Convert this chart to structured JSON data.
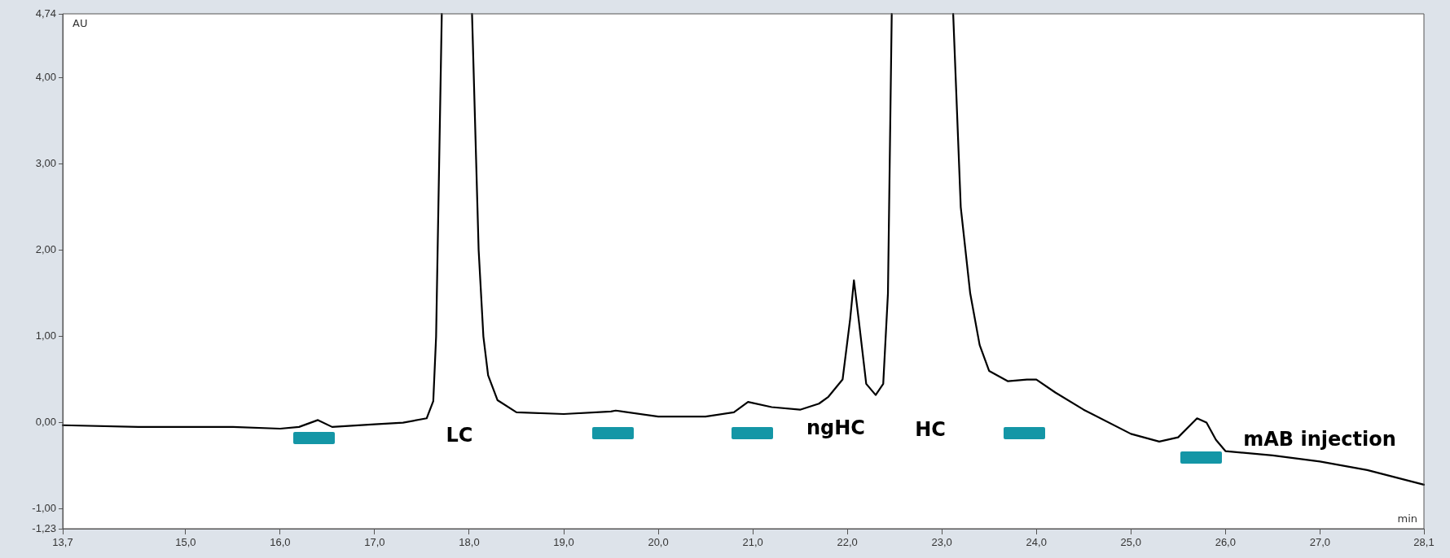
{
  "chart_data": {
    "type": "line",
    "xlabel": "min",
    "ylabel": "AU",
    "xlim": [
      13.7,
      28.1
    ],
    "ylim": [
      -1.23,
      4.74
    ],
    "xticks": [
      {
        "value": 13.7,
        "label": "13,7"
      },
      {
        "value": 15,
        "label": "15,0"
      },
      {
        "value": 16,
        "label": "16,0"
      },
      {
        "value": 17,
        "label": "17,0"
      },
      {
        "value": 18,
        "label": "18,0"
      },
      {
        "value": 19,
        "label": "19,0"
      },
      {
        "value": 20,
        "label": "20,0"
      },
      {
        "value": 21,
        "label": "21,0"
      },
      {
        "value": 22,
        "label": "22,0"
      },
      {
        "value": 23,
        "label": "23,0"
      },
      {
        "value": 24,
        "label": "24,0"
      },
      {
        "value": 25,
        "label": "25,0"
      },
      {
        "value": 26,
        "label": "26,0"
      },
      {
        "value": 27,
        "label": "27,0"
      },
      {
        "value": 28.1,
        "label": "28,1"
      }
    ],
    "yticks": [
      {
        "value": -1.23,
        "label": "-1,23"
      },
      {
        "value": -1,
        "label": "-1,00"
      },
      {
        "value": 0,
        "label": "0,00"
      },
      {
        "value": 1,
        "label": "1,00"
      },
      {
        "value": 2,
        "label": "2,00"
      },
      {
        "value": 3,
        "label": "3,00"
      },
      {
        "value": 4,
        "label": "4,00"
      },
      {
        "value": 4.74,
        "label": "4,74"
      }
    ],
    "grid": false,
    "marker": "none",
    "line_style": "solid",
    "legend": false,
    "series": [
      {
        "color": "#000000",
        "x": [
          13.7,
          14.5,
          15.5,
          16.0,
          16.2,
          16.4,
          16.55,
          17.0,
          17.3,
          17.55,
          17.62,
          17.65,
          17.71,
          17.9,
          18.03,
          18.1,
          18.15,
          18.2,
          18.3,
          18.5,
          19.0,
          19.5,
          19.55,
          20.0,
          20.5,
          20.8,
          20.95,
          21.2,
          21.5,
          21.7,
          21.8,
          21.95,
          22.03,
          22.07,
          22.12,
          22.2,
          22.3,
          22.38,
          22.43,
          22.47,
          22.8,
          23.12,
          23.2,
          23.3,
          23.4,
          23.5,
          23.7,
          23.9,
          24.0,
          24.2,
          24.5,
          25.0,
          25.3,
          25.5,
          25.7,
          25.8,
          25.9,
          26.0,
          26.5,
          27.0,
          27.5,
          28.1
        ],
        "values": [
          -0.03,
          -0.05,
          -0.05,
          -0.07,
          -0.05,
          0.03,
          -0.05,
          -0.02,
          0.0,
          0.05,
          0.25,
          1.0,
          4.74,
          null,
          4.74,
          2.0,
          1.0,
          0.55,
          0.26,
          0.12,
          0.1,
          0.13,
          0.14,
          0.07,
          0.07,
          0.12,
          0.24,
          0.18,
          0.15,
          0.22,
          0.3,
          0.5,
          1.2,
          1.65,
          1.2,
          0.45,
          0.32,
          0.45,
          1.5,
          4.74,
          null,
          4.74,
          2.5,
          1.5,
          0.9,
          0.6,
          0.48,
          0.5,
          0.5,
          0.35,
          0.15,
          -0.13,
          -0.22,
          -0.17,
          0.05,
          0.0,
          -0.2,
          -0.33,
          -0.38,
          -0.45,
          -0.55,
          -0.72
        ]
      }
    ],
    "annotations": [
      "LC",
      "ngHC",
      "HC",
      "mAB injection"
    ]
  }
}
